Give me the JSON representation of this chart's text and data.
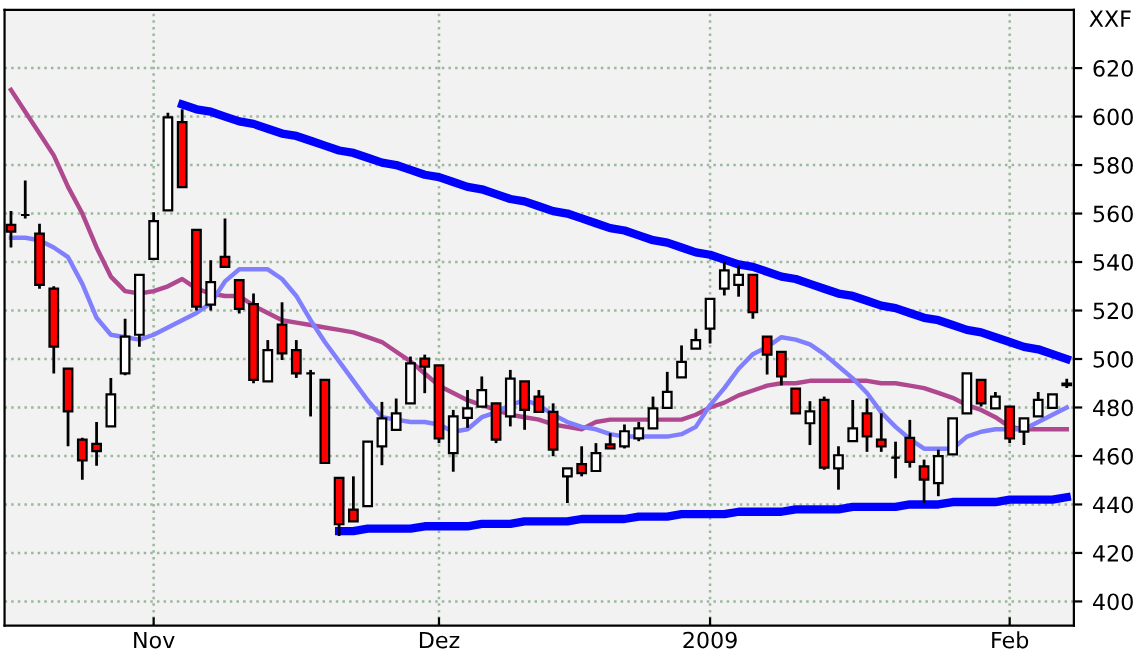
{
  "chart_data": {
    "type": "candlestick",
    "annotations": [
      "XXF"
    ],
    "categories": [
      null,
      null,
      null,
      null,
      null,
      null,
      null,
      null,
      null,
      null,
      "Nov",
      null,
      null,
      null,
      null,
      null,
      null,
      null,
      null,
      null,
      null,
      null,
      null,
      null,
      null,
      null,
      null,
      null,
      null,
      null,
      "Dez",
      null,
      null,
      null,
      null,
      null,
      null,
      null,
      null,
      null,
      null,
      null,
      null,
      null,
      null,
      null,
      null,
      null,
      null,
      "2009",
      null,
      null,
      null,
      null,
      null,
      null,
      null,
      null,
      null,
      null,
      null,
      null,
      null,
      null,
      null,
      null,
      null,
      null,
      null,
      null,
      "Feb",
      null,
      null,
      null,
      null
    ],
    "ohlc": [
      [
        555.3,
        561,
        546,
        552.5
      ],
      [
        559.4,
        573.6,
        558,
        559.4
      ],
      [
        551.7,
        555.8,
        529,
        530.6
      ],
      [
        529,
        530,
        494,
        505.1
      ],
      [
        496,
        496,
        464,
        478.4
      ],
      [
        466.7,
        467.5,
        450.2,
        458.2
      ],
      [
        465,
        474,
        456,
        462
      ],
      [
        472.2,
        492.2,
        472.2,
        485.4
      ],
      [
        494.1,
        516.6,
        493.3,
        509.2
      ],
      [
        510,
        534.7,
        505.1,
        534.7
      ],
      [
        541.3,
        560.5,
        541.3,
        556.9
      ],
      [
        561.3,
        601.6,
        561.3,
        599.7
      ],
      [
        597.7,
        603,
        570.9,
        570.9
      ],
      [
        553.3,
        553.3,
        520,
        521.6
      ],
      [
        522.4,
        540.7,
        520,
        531.7
      ],
      [
        542.1,
        558,
        538,
        538
      ],
      [
        532.5,
        532.5,
        518.8,
        520.7
      ],
      [
        522.6,
        527,
        490,
        491.4
      ],
      [
        490.8,
        507.8,
        490.8,
        503.7
      ],
      [
        514.2,
        523.4,
        499.6,
        502.3
      ],
      [
        503.7,
        507.8,
        492.2,
        494.1
      ],
      [
        494.1,
        495.5,
        476.3,
        494.1
      ],
      [
        491.4,
        491.4,
        457.1,
        457.1
      ],
      [
        451,
        451,
        427,
        431.9
      ],
      [
        437.9,
        451.6,
        433,
        433
      ],
      [
        439.3,
        465.9,
        439.3,
        465.9
      ],
      [
        464,
        482.3,
        456.2,
        475.5
      ],
      [
        470.8,
        483.7,
        470.8,
        477.6
      ],
      [
        481.7,
        501,
        481.7,
        498.2
      ],
      [
        500.2,
        501.8,
        485.9,
        496.9
      ],
      [
        497.4,
        497.4,
        465.3,
        467.3
      ],
      [
        461.2,
        479,
        453.5,
        476.3
      ],
      [
        475.7,
        487.2,
        471.6,
        479.6
      ],
      [
        480.4,
        492.8,
        480.4,
        487.2
      ],
      [
        481.7,
        481.7,
        465.3,
        466.7
      ],
      [
        476.3,
        495.5,
        472.2,
        491.9
      ],
      [
        490.8,
        490.8,
        470.8,
        479
      ],
      [
        484.5,
        487.2,
        478.2,
        478.2
      ],
      [
        478.2,
        481.7,
        459.9,
        462.6
      ],
      [
        451.6,
        454.9,
        440.6,
        454.9
      ],
      [
        456.6,
        464,
        451.6,
        452.9
      ],
      [
        453.8,
        465.3,
        453.8,
        461.2
      ],
      [
        464.8,
        469.4,
        463.1,
        463.1
      ],
      [
        464,
        473,
        463.1,
        470.2
      ],
      [
        467.3,
        474,
        466.1,
        471.4
      ],
      [
        471.4,
        484.5,
        471.4,
        479.6
      ],
      [
        479.8,
        494.7,
        479.8,
        486.4
      ],
      [
        492.4,
        505.6,
        492.4,
        498.8
      ],
      [
        504.3,
        512.5,
        504.3,
        507.8
      ],
      [
        512.5,
        524.8,
        506.4,
        524.8
      ],
      [
        529,
        540.2,
        526.2,
        536.6
      ],
      [
        530.6,
        538.5,
        525.7,
        534.7
      ],
      [
        534.7,
        534.7,
        516.6,
        519.3
      ],
      [
        509.2,
        509.2,
        493.6,
        501.8
      ],
      [
        502.9,
        502.9,
        489.1,
        492.8
      ],
      [
        487.8,
        487.8,
        477.6,
        477.6
      ],
      [
        473.5,
        482.6,
        464.5,
        478.4
      ],
      [
        483.1,
        484.5,
        454.3,
        455.2
      ],
      [
        454.9,
        464,
        446.1,
        460.3
      ],
      [
        466.1,
        483.1,
        466.1,
        471.4
      ],
      [
        477.6,
        483.7,
        461.7,
        468.1
      ],
      [
        466.7,
        477.6,
        461.7,
        464
      ],
      [
        459.3,
        465.9,
        450.8,
        459.3
      ],
      [
        467.5,
        474.9,
        455.2,
        457.6
      ],
      [
        455.7,
        458.5,
        440.6,
        450.2
      ],
      [
        448.8,
        462.6,
        443.4,
        459.9
      ],
      [
        460.7,
        475.5,
        460.7,
        475.5
      ],
      [
        477.6,
        494.1,
        477.6,
        494.1
      ],
      [
        491.4,
        491.4,
        480.4,
        481.7
      ],
      [
        479.6,
        486.4,
        479.6,
        484.5
      ],
      [
        480.4,
        480.4,
        465.3,
        467.3
      ],
      [
        470,
        475.5,
        464.5,
        475.5
      ],
      [
        476.3,
        486.4,
        476.3,
        483.1
      ],
      [
        479.8,
        485.4,
        479.8,
        485.4
      ],
      [
        489.2,
        491.9,
        488,
        489.8
      ]
    ],
    "colors": [
      "#ff0000",
      "#000000",
      "#ff0000",
      "#ff0000",
      "#ff0000",
      "#ff0000",
      "#ff0000",
      "#ffffff",
      "#ffffff",
      "#ffffff",
      "#ffffff",
      "#ffffff",
      "#ff0000",
      "#ff0000",
      "#ffffff",
      "#ff0000",
      "#ff0000",
      "#ff0000",
      "#ffffff",
      "#ff0000",
      "#ff0000",
      "#000000",
      "#ff0000",
      "#ff0000",
      "#ff0000",
      "#ffffff",
      "#ffffff",
      "#ffffff",
      "#ffffff",
      "#ff0000",
      "#ff0000",
      "#ffffff",
      "#ffffff",
      "#ffffff",
      "#ff0000",
      "#ffffff",
      "#ff0000",
      "#ff0000",
      "#ff0000",
      "#ffffff",
      "#ff0000",
      "#ffffff",
      "#ff0000",
      "#ffffff",
      "#ffffff",
      "#ffffff",
      "#ffffff",
      "#ffffff",
      "#ffffff",
      "#ffffff",
      "#ffffff",
      "#ffffff",
      "#ff0000",
      "#ff0000",
      "#ff0000",
      "#ff0000",
      "#ffffff",
      "#ff0000",
      "#ffffff",
      "#ffffff",
      "#ff0000",
      "#ff0000",
      "#000000",
      "#ff0000",
      "#ff0000",
      "#ffffff",
      "#ffffff",
      "#ffffff",
      "#ff0000",
      "#ffffff",
      "#ff0000",
      "#ffffff",
      "#ffffff",
      "#ffffff",
      "#000000"
    ],
    "series": [
      {
        "type": "line",
        "color": "#b0488f",
        "values": [
          611,
          602,
          593,
          584,
          571,
          560,
          546,
          534,
          528,
          527,
          528,
          530,
          533,
          529,
          527,
          526,
          526,
          522,
          519,
          516,
          515,
          514,
          513,
          512,
          511,
          509,
          507,
          503,
          499,
          494,
          489,
          486,
          483,
          481,
          479,
          477,
          476,
          475,
          473,
          472,
          471,
          474,
          475,
          475,
          475,
          475,
          475,
          475,
          477,
          480,
          482,
          485,
          487,
          489,
          490,
          490,
          491,
          491,
          491,
          491,
          491,
          490,
          490,
          489,
          488,
          486,
          484,
          481,
          479,
          476,
          472,
          471,
          471,
          471,
          471
        ]
      },
      {
        "type": "line",
        "color": "#8080ff",
        "values": [
          550,
          550,
          549,
          546,
          542,
          531,
          517,
          510,
          509,
          508,
          510,
          513,
          516,
          519,
          523,
          532,
          537,
          537,
          537,
          533,
          526,
          516,
          507,
          499,
          491,
          483,
          476,
          475,
          474,
          474,
          473,
          470,
          471,
          476,
          478,
          481,
          483,
          481,
          477,
          474,
          472,
          471,
          469,
          468,
          468,
          468,
          468,
          469,
          472,
          481,
          488,
          496,
          502,
          505,
          509,
          508,
          506,
          502,
          497,
          492,
          486,
          478,
          472,
          467,
          463,
          463,
          463,
          468,
          470,
          471,
          471,
          471,
          474,
          477,
          480
        ]
      },
      {
        "type": "line",
        "color": "#0000ff",
        "values": [
          null,
          null,
          null,
          null,
          null,
          null,
          null,
          null,
          null,
          null,
          null,
          null,
          605,
          603,
          602,
          600,
          598,
          597,
          595,
          593,
          592,
          590,
          588,
          586,
          585,
          583,
          581,
          580,
          578,
          576,
          575,
          573,
          571,
          570,
          568,
          566,
          565,
          563,
          561,
          560,
          558,
          556,
          554,
          553,
          551,
          549,
          548,
          546,
          544,
          543,
          541,
          539,
          538,
          536,
          534,
          533,
          531,
          529,
          527,
          526,
          524,
          522,
          521,
          519,
          517,
          516,
          514,
          512,
          511,
          509,
          507,
          505,
          504,
          502,
          500
        ]
      },
      {
        "type": "line",
        "color": "#0000ff",
        "values": [
          null,
          null,
          null,
          null,
          null,
          null,
          null,
          null,
          null,
          null,
          null,
          null,
          null,
          null,
          null,
          null,
          null,
          null,
          null,
          null,
          null,
          null,
          null,
          429,
          429,
          430,
          430,
          430,
          430,
          431,
          431,
          431,
          431,
          432,
          432,
          432,
          433,
          433,
          433,
          433,
          434,
          434,
          434,
          434,
          435,
          435,
          435,
          436,
          436,
          436,
          436,
          437,
          437,
          437,
          437,
          438,
          438,
          438,
          438,
          439,
          439,
          439,
          439,
          440,
          440,
          440,
          441,
          441,
          441,
          441,
          442,
          442,
          442,
          442,
          443
        ]
      }
    ],
    "ylim": [
      390,
      644
    ],
    "yticks": [
      400,
      420,
      440,
      460,
      480,
      500,
      520,
      540,
      560,
      580,
      600,
      620
    ],
    "grid": true,
    "marker": "none",
    "line_style": "solid"
  }
}
